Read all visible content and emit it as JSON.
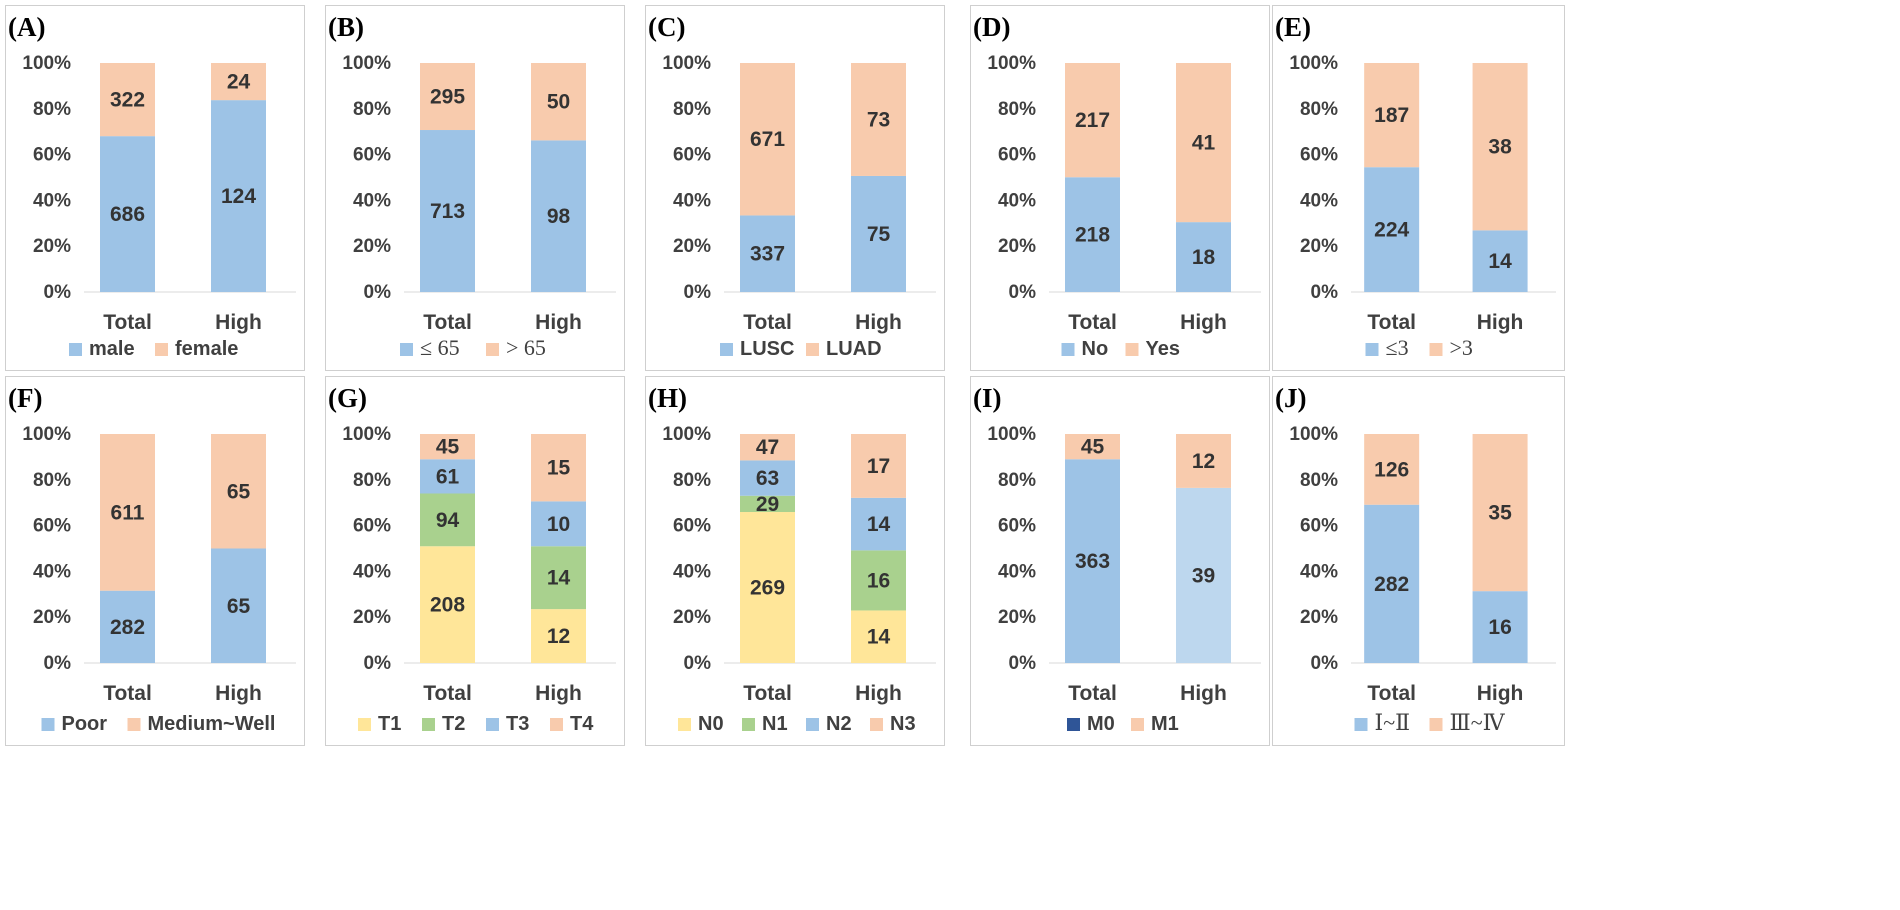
{
  "chart_data": [
    {
      "panel_label": "(A)",
      "type": "bar",
      "stacked": true,
      "normalized": true,
      "categories": [
        "Total",
        "High"
      ],
      "yticks": [
        "0%",
        "20%",
        "40%",
        "60%",
        "80%",
        "100%"
      ],
      "ylim": [
        0,
        100
      ],
      "series": [
        {
          "name": "male",
          "color": "#9dc3e6",
          "values": [
            686,
            124
          ]
        },
        {
          "name": "female",
          "color": "#f8cbad",
          "values": [
            322,
            24
          ]
        }
      ],
      "legend": "bottom"
    },
    {
      "panel_label": "(B)",
      "type": "bar",
      "stacked": true,
      "normalized": true,
      "categories": [
        "Total",
        "High"
      ],
      "yticks": [
        "0%",
        "20%",
        "40%",
        "60%",
        "80%",
        "100%"
      ],
      "ylim": [
        0,
        100
      ],
      "series": [
        {
          "name": "≤ 65",
          "color": "#9dc3e6",
          "values": [
            713,
            98
          ]
        },
        {
          "name": "> 65",
          "color": "#f8cbad",
          "values": [
            295,
            50
          ]
        }
      ],
      "legend": "bottom"
    },
    {
      "panel_label": "(C)",
      "type": "bar",
      "stacked": true,
      "normalized": true,
      "categories": [
        "Total",
        "High"
      ],
      "yticks": [
        "0%",
        "20%",
        "40%",
        "60%",
        "80%",
        "100%"
      ],
      "ylim": [
        0,
        100
      ],
      "series": [
        {
          "name": "LUSC",
          "color": "#9dc3e6",
          "values": [
            337,
            75
          ]
        },
        {
          "name": "LUAD",
          "color": "#f8cbad",
          "values": [
            671,
            73
          ]
        }
      ],
      "legend": "bottom"
    },
    {
      "panel_label": "(D)",
      "type": "bar",
      "stacked": true,
      "normalized": true,
      "categories": [
        "Total",
        "High"
      ],
      "yticks": [
        "0%",
        "20%",
        "40%",
        "60%",
        "80%",
        "100%"
      ],
      "ylim": [
        0,
        100
      ],
      "series": [
        {
          "name": "No",
          "color": "#9dc3e6",
          "values": [
            218,
            18
          ]
        },
        {
          "name": "Yes",
          "color": "#f8cbad",
          "values": [
            217,
            41
          ]
        }
      ],
      "legend": "bottom"
    },
    {
      "panel_label": "(E)",
      "type": "bar",
      "stacked": true,
      "normalized": true,
      "categories": [
        "Total",
        "High"
      ],
      "yticks": [
        "0%",
        "20%",
        "40%",
        "60%",
        "80%",
        "100%"
      ],
      "ylim": [
        0,
        100
      ],
      "series": [
        {
          "name": "≤3",
          "color": "#9dc3e6",
          "values": [
            224,
            14
          ]
        },
        {
          "name": ">3",
          "color": "#f8cbad",
          "values": [
            187,
            38
          ]
        }
      ],
      "legend": "bottom"
    },
    {
      "panel_label": "(F)",
      "type": "bar",
      "stacked": true,
      "normalized": true,
      "categories": [
        "Total",
        "High"
      ],
      "yticks": [
        "0%",
        "20%",
        "40%",
        "60%",
        "80%",
        "100%"
      ],
      "ylim": [
        0,
        100
      ],
      "series": [
        {
          "name": "Poor",
          "color": "#9dc3e6",
          "values": [
            282,
            65
          ]
        },
        {
          "name": "Medium~Well",
          "color": "#f8cbad",
          "values": [
            611,
            65
          ]
        }
      ],
      "legend": "bottom"
    },
    {
      "panel_label": "(G)",
      "type": "bar",
      "stacked": true,
      "normalized": true,
      "categories": [
        "Total",
        "High"
      ],
      "yticks": [
        "0%",
        "20%",
        "40%",
        "60%",
        "80%",
        "100%"
      ],
      "ylim": [
        0,
        100
      ],
      "series": [
        {
          "name": "T1",
          "color": "#ffe699",
          "values": [
            208,
            12
          ]
        },
        {
          "name": "T2",
          "color": "#a9d18e",
          "values": [
            94,
            14
          ]
        },
        {
          "name": "T3",
          "color": "#9dc3e6",
          "values": [
            61,
            10
          ]
        },
        {
          "name": "T4",
          "color": "#f8cbad",
          "values": [
            45,
            15
          ]
        }
      ],
      "legend": "bottom"
    },
    {
      "panel_label": "(H)",
      "type": "bar",
      "stacked": true,
      "normalized": true,
      "categories": [
        "Total",
        "High"
      ],
      "yticks": [
        "0%",
        "20%",
        "40%",
        "60%",
        "80%",
        "100%"
      ],
      "ylim": [
        0,
        100
      ],
      "series": [
        {
          "name": "N0",
          "color": "#ffe699",
          "values": [
            269,
            14
          ]
        },
        {
          "name": "N1",
          "color": "#a9d18e",
          "values": [
            29,
            16
          ]
        },
        {
          "name": "N2",
          "color": "#9dc3e6",
          "values": [
            63,
            14
          ]
        },
        {
          "name": "N3",
          "color": "#f8cbad",
          "values": [
            47,
            17
          ]
        }
      ],
      "legend": "bottom"
    },
    {
      "panel_label": "(I)",
      "type": "bar",
      "stacked": true,
      "normalized": true,
      "categories": [
        "Total",
        "High"
      ],
      "yticks": [
        "0%",
        "20%",
        "40%",
        "60%",
        "80%",
        "100%"
      ],
      "ylim": [
        0,
        100
      ],
      "series": [
        {
          "name": "M0",
          "color": "#9dc3e6",
          "legend_color": "#2f5597",
          "values": [
            363,
            39
          ]
        },
        {
          "name": "M1",
          "color": "#f8cbad",
          "values": [
            45,
            12
          ]
        }
      ],
      "legend": "bottom"
    },
    {
      "panel_label": "(J)",
      "type": "bar",
      "stacked": true,
      "normalized": true,
      "categories": [
        "Total",
        "High"
      ],
      "yticks": [
        "0%",
        "20%",
        "40%",
        "60%",
        "80%",
        "100%"
      ],
      "ylim": [
        0,
        100
      ],
      "series": [
        {
          "name": "Ⅰ~Ⅱ",
          "color": "#9dc3e6",
          "values": [
            282,
            16
          ]
        },
        {
          "name": "Ⅲ~Ⅳ",
          "color": "#f8cbad",
          "values": [
            126,
            35
          ]
        }
      ],
      "legend": "bottom"
    }
  ]
}
